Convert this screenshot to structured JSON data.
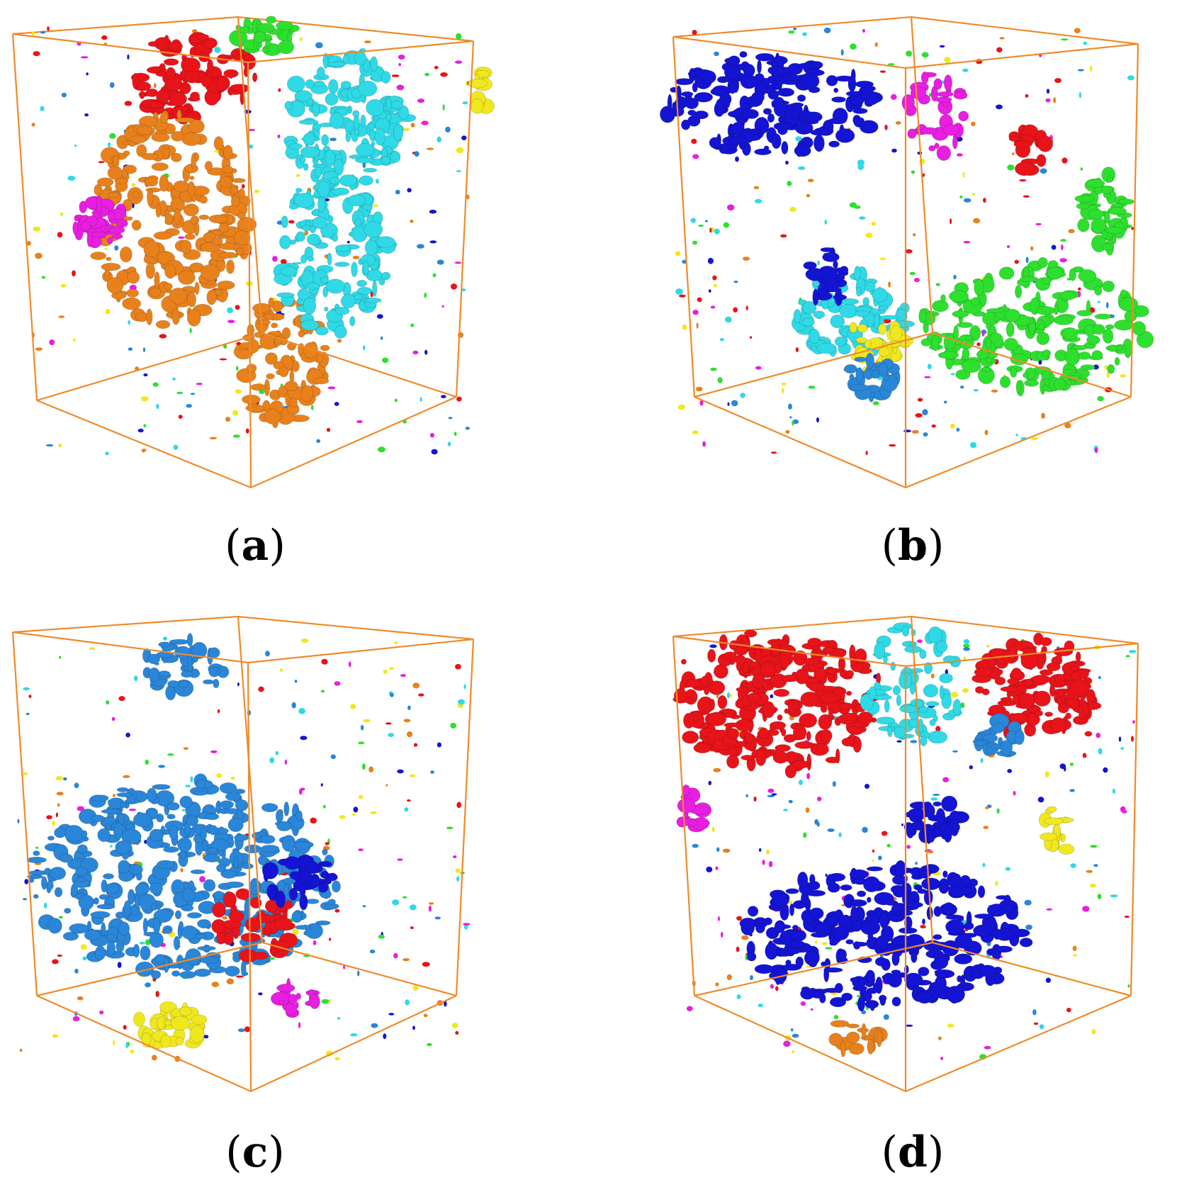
{
  "colors": {
    "box_edge": "#f08a2a",
    "red": "#e8141a",
    "orange": "#e8811c",
    "cyan": "#2fd9e6",
    "blue": "#1414d4",
    "light_blue": "#2a86d8",
    "green": "#2ee02e",
    "magenta": "#e81ee0",
    "yellow": "#f0e81e"
  },
  "panels": [
    {
      "letter": "a",
      "dominant": [
        "orange",
        "cyan",
        "red",
        "magenta"
      ]
    },
    {
      "letter": "b",
      "dominant": [
        "blue",
        "green",
        "cyan",
        "yellow"
      ]
    },
    {
      "letter": "c",
      "dominant": [
        "light_blue",
        "yellow",
        "red"
      ]
    },
    {
      "letter": "d",
      "dominant": [
        "red",
        "blue",
        "cyan",
        "magenta",
        "yellow"
      ]
    }
  ]
}
